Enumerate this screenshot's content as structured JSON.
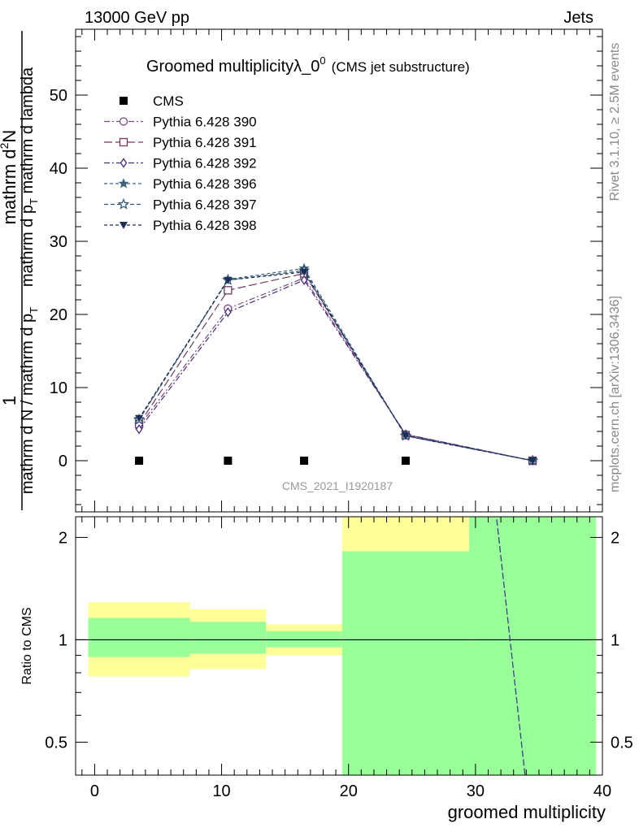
{
  "header": {
    "left": "13000 GeV pp",
    "right": "Jets"
  },
  "side": {
    "top": "Rivet 3.1.10, ≥ 2.5M events",
    "bottom": "mcplots.cern.ch [arXiv:1306.3436]"
  },
  "analysis_tag": "CMS_2021_I1920187",
  "chart_data": [
    {
      "type": "line",
      "panel": "main",
      "title": "Groomed multiplicityλ_0",
      "title_sup": "0",
      "title_suffix": "(CMS jet substructure)",
      "ylabel": {
        "num1": "1",
        "num2": "mathrm d",
        "num2_sup": "2",
        "num3": "N",
        "den_left": "mathrm d N / mathrm d p",
        "den_left_sub": "T",
        "den_right_left": "mathrm d p",
        "den_right_sub": "T",
        "den_right_right": " mathrm d lambda"
      },
      "xlim": [
        -1.5,
        40
      ],
      "ylim": [
        -7,
        59
      ],
      "yticks": [
        0,
        10,
        20,
        30,
        40,
        50
      ],
      "legend_position": "top-left",
      "series": [
        {
          "name": "CMS",
          "marker": "square-filled",
          "color": "#000000",
          "dash": "none",
          "x": [
            3.5,
            10.5,
            16.5,
            24.5
          ],
          "y": [
            0,
            0,
            0,
            0
          ]
        },
        {
          "name": "Pythia 6.428 390",
          "marker": "circle-open",
          "color": "#7b4a84",
          "dash": "7,3,2,3",
          "x": [
            3.5,
            10.5,
            16.5,
            24.5,
            34.5
          ],
          "y": [
            4.7,
            20.8,
            25.0,
            3.6,
            0
          ]
        },
        {
          "name": "Pythia 6.428 391",
          "marker": "square-open",
          "color": "#6e3b5e",
          "dash": "10,4",
          "x": [
            3.5,
            10.5,
            16.5,
            24.5,
            34.5
          ],
          "y": [
            5.0,
            23.3,
            25.6,
            3.5,
            0
          ]
        },
        {
          "name": "Pythia 6.428 392",
          "marker": "diamond-open",
          "color": "#4a2a80",
          "dash": "7,3,2,3",
          "x": [
            3.5,
            10.5,
            16.5,
            24.5,
            34.5
          ],
          "y": [
            4.3,
            20.3,
            24.7,
            3.6,
            0
          ]
        },
        {
          "name": "Pythia 6.428 396",
          "marker": "star-filled",
          "color": "#3a6378",
          "dash": "4,3",
          "x": [
            3.5,
            10.5,
            16.5,
            24.5,
            34.5
          ],
          "y": [
            5.7,
            24.8,
            26.3,
            3.4,
            0
          ]
        },
        {
          "name": "Pythia 6.428 397",
          "marker": "star-open",
          "color": "#2f5478",
          "dash": "5,3",
          "x": [
            3.5,
            10.5,
            16.5,
            24.5,
            34.5
          ],
          "y": [
            5.6,
            24.7,
            26.0,
            3.4,
            0
          ]
        },
        {
          "name": "Pythia 6.428 398",
          "marker": "triangle-down-filled",
          "color": "#1d2f57",
          "dash": "4,3",
          "x": [
            3.5,
            10.5,
            16.5,
            24.5,
            34.5
          ],
          "y": [
            5.8,
            24.7,
            25.8,
            3.4,
            0
          ]
        }
      ]
    },
    {
      "type": "area",
      "panel": "ratio",
      "ylabel": "Ratio to CMS",
      "xlabel": "groomed multiplicity",
      "xlim": [
        -1.5,
        40
      ],
      "ylim": [
        0.4,
        2.3
      ],
      "log_y": true,
      "yticks": [
        0.5,
        1,
        2
      ],
      "xticks": [
        0,
        10,
        20,
        30,
        40
      ],
      "reference_line": 1,
      "bands": [
        {
          "x0": -0.5,
          "x1": 7.5,
          "green": [
            0.89,
            1.16
          ],
          "yellow": [
            0.78,
            1.29
          ]
        },
        {
          "x0": 7.5,
          "x1": 13.5,
          "green": [
            0.91,
            1.13
          ],
          "yellow": [
            0.82,
            1.23
          ]
        },
        {
          "x0": 13.5,
          "x1": 19.5,
          "green": [
            0.95,
            1.06
          ],
          "yellow": [
            0.9,
            1.11
          ]
        },
        {
          "x0": 19.5,
          "x1": 29.5,
          "green": [
            0.3,
            1.82
          ],
          "yellow": [
            0.3,
            3.0
          ]
        },
        {
          "x0": 29.5,
          "x1": 39.5,
          "green": [
            0.3,
            3.0
          ],
          "yellow": [
            0.3,
            3.0
          ]
        }
      ],
      "series": [
        {
          "name": "Pythia 6.428 398",
          "color": "#3a3f8a",
          "dash": "8,3",
          "x": [
            31.6,
            33.9
          ],
          "y": [
            2.4,
            0.4
          ]
        }
      ]
    }
  ]
}
